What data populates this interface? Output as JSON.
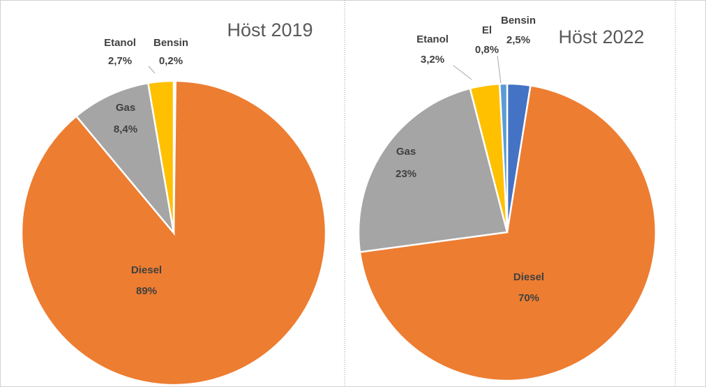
{
  "chart_data": [
    {
      "type": "pie",
      "title": "Höst 2019",
      "categories": [
        "Bensin",
        "Diesel",
        "Gas",
        "Etanol"
      ],
      "values": [
        0.2,
        89,
        8.4,
        2.7
      ],
      "value_labels": [
        "0,2%",
        "89%",
        "8,4%",
        "2,7%"
      ],
      "colors": [
        "#4472c4",
        "#ed7d31",
        "#a5a5a5",
        "#ffc000"
      ]
    },
    {
      "type": "pie",
      "title": "Höst 2022",
      "categories": [
        "Bensin",
        "Diesel",
        "Gas",
        "Etanol",
        "El"
      ],
      "values": [
        2.5,
        70,
        23,
        3.2,
        0.8
      ],
      "value_labels": [
        "2,5%",
        "70%",
        "23%",
        "3,2%",
        "0,8%"
      ],
      "colors": [
        "#4472c4",
        "#ed7d31",
        "#a5a5a5",
        "#ffc000",
        "#5b9bd5"
      ]
    }
  ]
}
